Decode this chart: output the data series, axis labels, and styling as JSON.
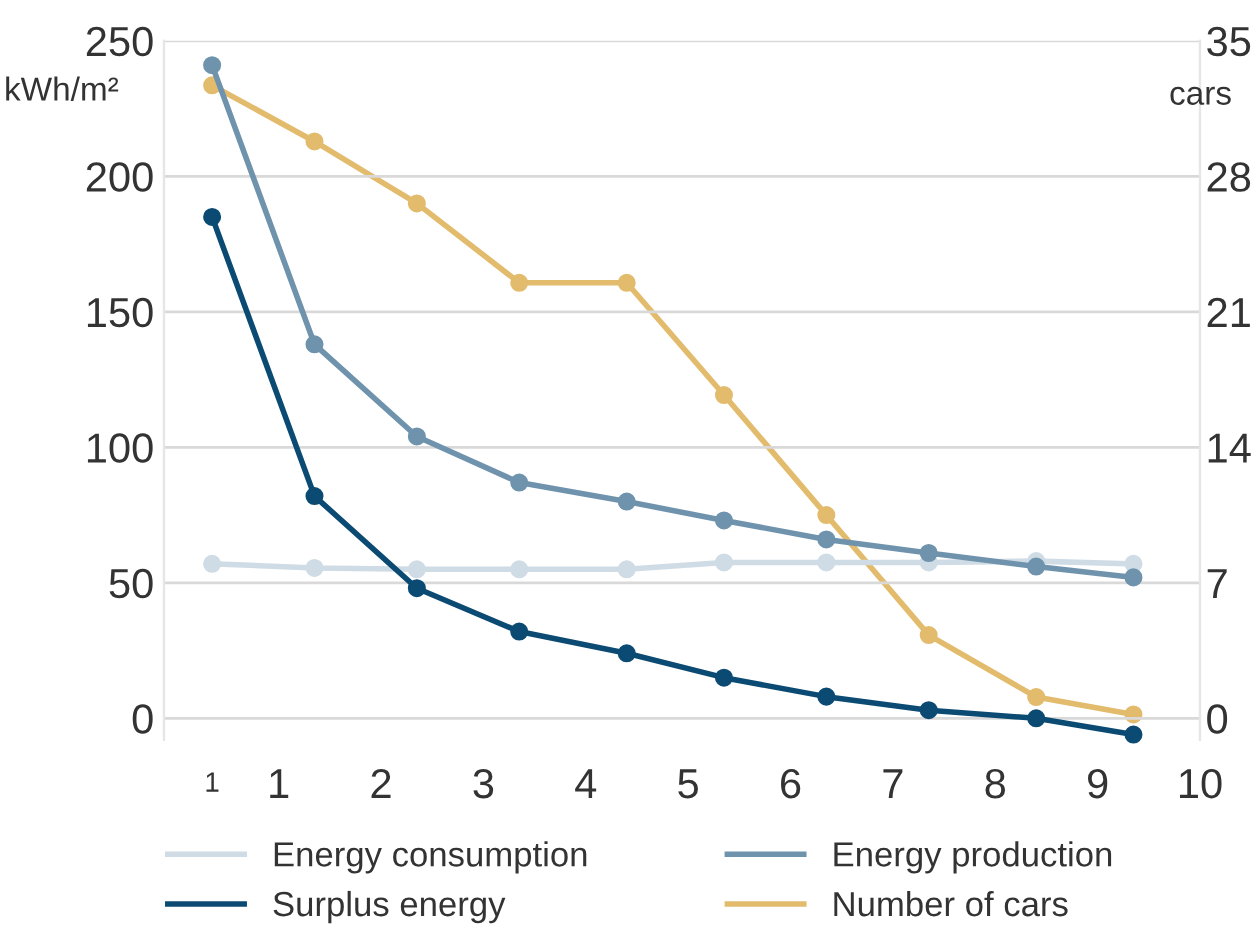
{
  "chart_data": {
    "type": "line",
    "ylabel": "kWh/m²",
    "y2label": "cars",
    "x": [
      0.35,
      1.35,
      2.35,
      3.35,
      4.4,
      5.35,
      6.35,
      7.35,
      8.4,
      9.35
    ],
    "series": [
      {
        "name": "Energy consumption",
        "color": "#cfdce5",
        "values": [
          57,
          55.5,
          55,
          55,
          55,
          57.5,
          57.5,
          57.5,
          58,
          57
        ]
      },
      {
        "name": "Energy production",
        "color": "#6f93ad",
        "values": [
          241,
          138,
          104,
          87,
          80,
          73,
          66,
          61,
          56,
          52
        ]
      },
      {
        "name": "Surplus energy",
        "color": "#0b4a72",
        "values": [
          185,
          82,
          48,
          32,
          24,
          15,
          8,
          3,
          0,
          -6
        ]
      },
      {
        "name": "Number of cars",
        "color": "#e2bb6c",
        "axis": "y2",
        "values": [
          32.7,
          29.8,
          26.6,
          22.5,
          22.5,
          16.7,
          10.5,
          4.3,
          1.1,
          0.2
        ]
      }
    ],
    "xlim": [
      -0.12,
      10
    ],
    "xticks": [
      1,
      2,
      3,
      4,
      5,
      6,
      7,
      8,
      9,
      10
    ],
    "annotations": [
      "1"
    ],
    "ylim": [
      -8,
      250
    ],
    "yticks": [
      0,
      50,
      100,
      150,
      200,
      250
    ],
    "y2lim": [
      -1.12,
      35
    ],
    "y2ticks": [
      0,
      7,
      14,
      21,
      28,
      35
    ],
    "grid": "y",
    "legend": "bottom",
    "marker": "circle",
    "line_style": "solid"
  }
}
